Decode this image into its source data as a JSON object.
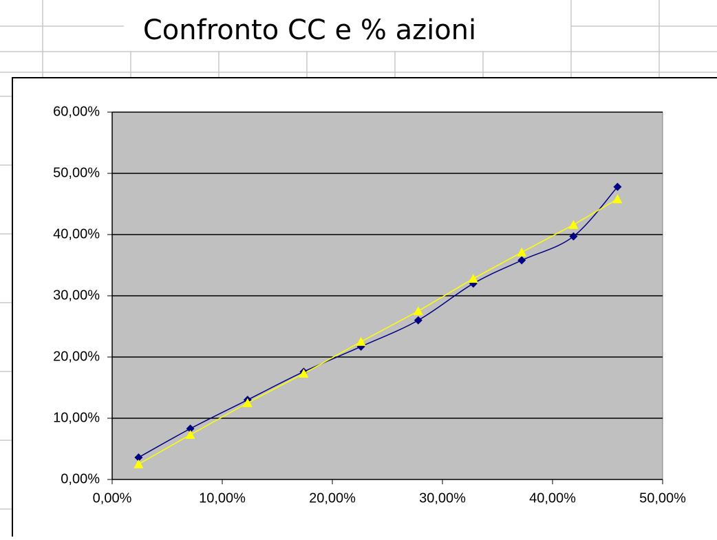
{
  "chart_data": {
    "type": "line",
    "title": "Confronto CC e % azioni",
    "x": [
      2.4,
      7.1,
      12.3,
      17.4,
      22.6,
      27.8,
      32.8,
      37.2,
      41.9,
      45.9
    ],
    "series": [
      {
        "color": "#000080",
        "marker": "diamond",
        "smooth": true,
        "values": [
          3.6,
          8.3,
          13.0,
          17.6,
          21.7,
          26.0,
          32.0,
          35.8,
          39.7,
          47.8
        ]
      },
      {
        "color": "#ffff00",
        "marker": "triangle",
        "smooth": false,
        "values": [
          2.5,
          7.3,
          12.5,
          17.3,
          22.5,
          27.5,
          32.8,
          37.1,
          41.6,
          45.8
        ]
      }
    ],
    "xlim": [
      0,
      50
    ],
    "xticks": [
      {
        "value": 0,
        "label": "0,00%"
      },
      {
        "value": 10,
        "label": "10,00%"
      },
      {
        "value": 20,
        "label": "20,00%"
      },
      {
        "value": 30,
        "label": "30,00%"
      },
      {
        "value": 40,
        "label": "40,00%"
      },
      {
        "value": 50,
        "label": "50,00%"
      }
    ],
    "ylim": [
      0,
      60
    ],
    "yticks": [
      {
        "value": 0,
        "label": "0,00%"
      },
      {
        "value": 10,
        "label": "10,00%"
      },
      {
        "value": 20,
        "label": "20,00%"
      },
      {
        "value": 30,
        "label": "30,00%"
      },
      {
        "value": 40,
        "label": "40,00%"
      },
      {
        "value": 50,
        "label": "50,00%"
      },
      {
        "value": 60,
        "label": "60,00%"
      }
    ],
    "grid": true,
    "plot_background": "#c0c0c0"
  }
}
